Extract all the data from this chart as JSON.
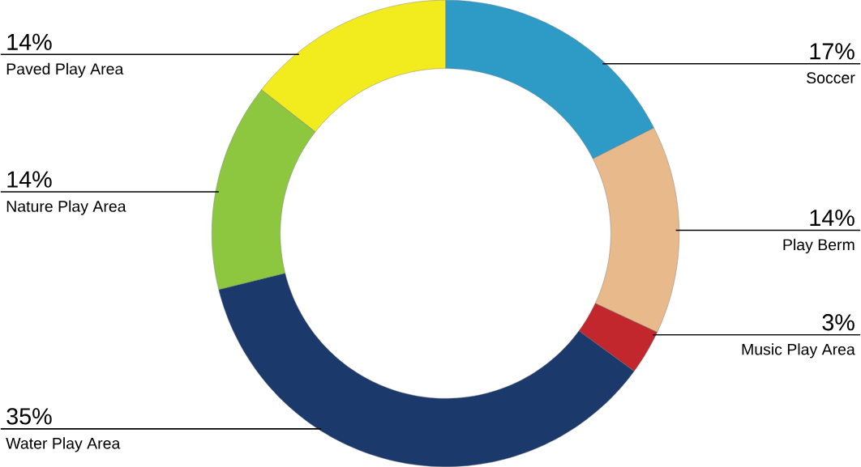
{
  "chart_data": {
    "type": "donut",
    "categories": [
      "Soccer",
      "Play Berm",
      "Music Play Area",
      "Water Play Area",
      "Nature Play Area",
      "Paved Play Area"
    ],
    "values": [
      17,
      14,
      3,
      35,
      14,
      14
    ],
    "value_labels": [
      "17%",
      "14%",
      "3%",
      "35%",
      "14%",
      "14%"
    ],
    "colors": [
      "#2e9ac6",
      "#e8b98a",
      "#c1272d",
      "#1b3a6b",
      "#8dc63f",
      "#f2eb1e"
    ]
  }
}
